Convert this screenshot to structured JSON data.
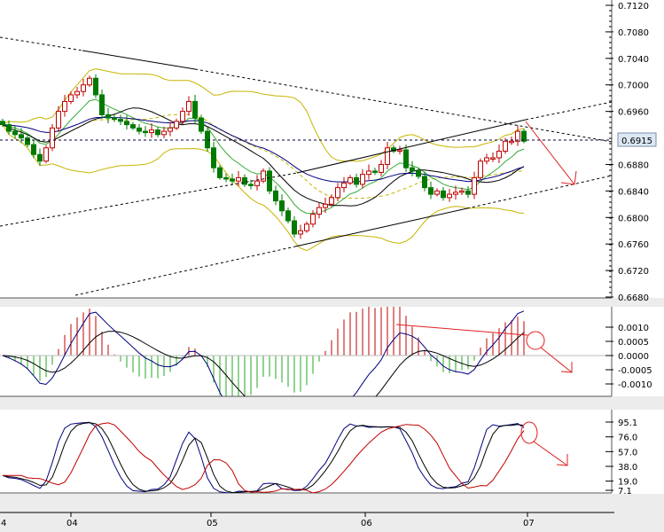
{
  "chart_data": {
    "type": "candlestick",
    "main": {
      "y_ticks": [
        "0.7120",
        "0.7080",
        "0.7040",
        "0.7000",
        "0.6960",
        "0.6880",
        "0.6840",
        "0.6800",
        "0.6760",
        "0.6720",
        "0.6680"
      ],
      "ylim": [
        0.668,
        0.7124
      ],
      "current_price": "0.6915",
      "closes": [
        0.694,
        0.693,
        0.6925,
        0.692,
        0.691,
        0.6895,
        0.6885,
        0.6905,
        0.6935,
        0.696,
        0.6975,
        0.6985,
        0.699,
        0.7,
        0.701,
        0.6985,
        0.6955,
        0.695,
        0.6948,
        0.6945,
        0.694,
        0.6935,
        0.693,
        0.6928,
        0.6932,
        0.6925,
        0.693,
        0.6935,
        0.6945,
        0.696,
        0.6975,
        0.695,
        0.693,
        0.6905,
        0.6875,
        0.686,
        0.6858,
        0.6855,
        0.686,
        0.685,
        0.6848,
        0.6855,
        0.687,
        0.684,
        0.6825,
        0.681,
        0.6795,
        0.6775,
        0.678,
        0.679,
        0.6805,
        0.6815,
        0.682,
        0.683,
        0.6845,
        0.6852,
        0.686,
        0.685,
        0.6865,
        0.687,
        0.6868,
        0.688,
        0.6905,
        0.69,
        0.6902,
        0.6875,
        0.687,
        0.6862,
        0.6845,
        0.6835,
        0.684,
        0.683,
        0.6835,
        0.6838,
        0.684,
        0.6835,
        0.686,
        0.6885,
        0.689,
        0.689,
        0.69,
        0.6915,
        0.6915,
        0.693,
        0.6915
      ]
    },
    "macd": {
      "y_ticks": [
        "0.0010",
        "0.0005",
        "0.0000",
        "-0.0005",
        "-0.0010"
      ],
      "ylim": [
        -0.0014,
        0.0017
      ]
    },
    "stochastic": {
      "y_ticks": [
        "95.1",
        "76.0",
        "57.0",
        "38.0",
        "19.0",
        "7.1"
      ],
      "ylim": [
        0,
        100
      ]
    },
    "x_ticks": [
      "4",
      "04",
      "05",
      "06",
      "07"
    ],
    "colors": {
      "bull": "#c00000",
      "bear": "#007a00",
      "bands": "#c8b400",
      "ma_fast": "#33aa33",
      "ma_mid": "#000000",
      "ma_slow": "#000080",
      "arrow": "#e02020"
    }
  }
}
